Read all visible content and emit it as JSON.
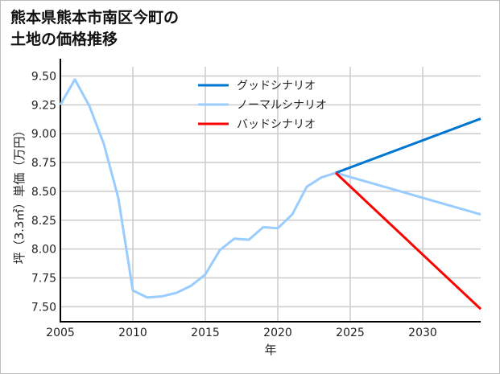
{
  "chart_data": {
    "type": "line",
    "title": "熊本県熊本市南区今町の\n土地の価格推移",
    "xlabel": "年",
    "ylabel": "坪（3.3㎡）単価（万円）",
    "xlim": [
      2005,
      2034
    ],
    "ylim": [
      7.37,
      9.58
    ],
    "xticks": [
      2005,
      2010,
      2015,
      2020,
      2025,
      2030
    ],
    "yticks": [
      7.5,
      7.75,
      8.0,
      8.25,
      8.5,
      8.75,
      9.0,
      9.25,
      9.5
    ],
    "ytick_labels": [
      "7.50",
      "7.75",
      "8.00",
      "8.25",
      "8.50",
      "8.75",
      "9.00",
      "9.25",
      "9.50"
    ],
    "grid": true,
    "legend_position": "top-center",
    "series": [
      {
        "name": "グッドシナリオ",
        "color": "#0077d0",
        "x": [
          2024,
          2034
        ],
        "y": [
          8.66,
          9.13
        ]
      },
      {
        "name": "ノーマルシナリオ",
        "color": "#99ccff",
        "x": [
          2005,
          2006,
          2007,
          2008,
          2009,
          2010,
          2011,
          2012,
          2013,
          2014,
          2015,
          2016,
          2017,
          2018,
          2019,
          2020,
          2021,
          2022,
          2023,
          2024,
          2034
        ],
        "y": [
          9.25,
          9.47,
          9.24,
          8.91,
          8.44,
          7.64,
          7.58,
          7.59,
          7.62,
          7.68,
          7.78,
          7.99,
          8.09,
          8.08,
          8.19,
          8.18,
          8.3,
          8.54,
          8.62,
          8.66,
          8.3
        ]
      },
      {
        "name": "バッドシナリオ",
        "color": "#ff0000",
        "x": [
          2024,
          2034
        ],
        "y": [
          8.66,
          7.48
        ]
      }
    ]
  }
}
